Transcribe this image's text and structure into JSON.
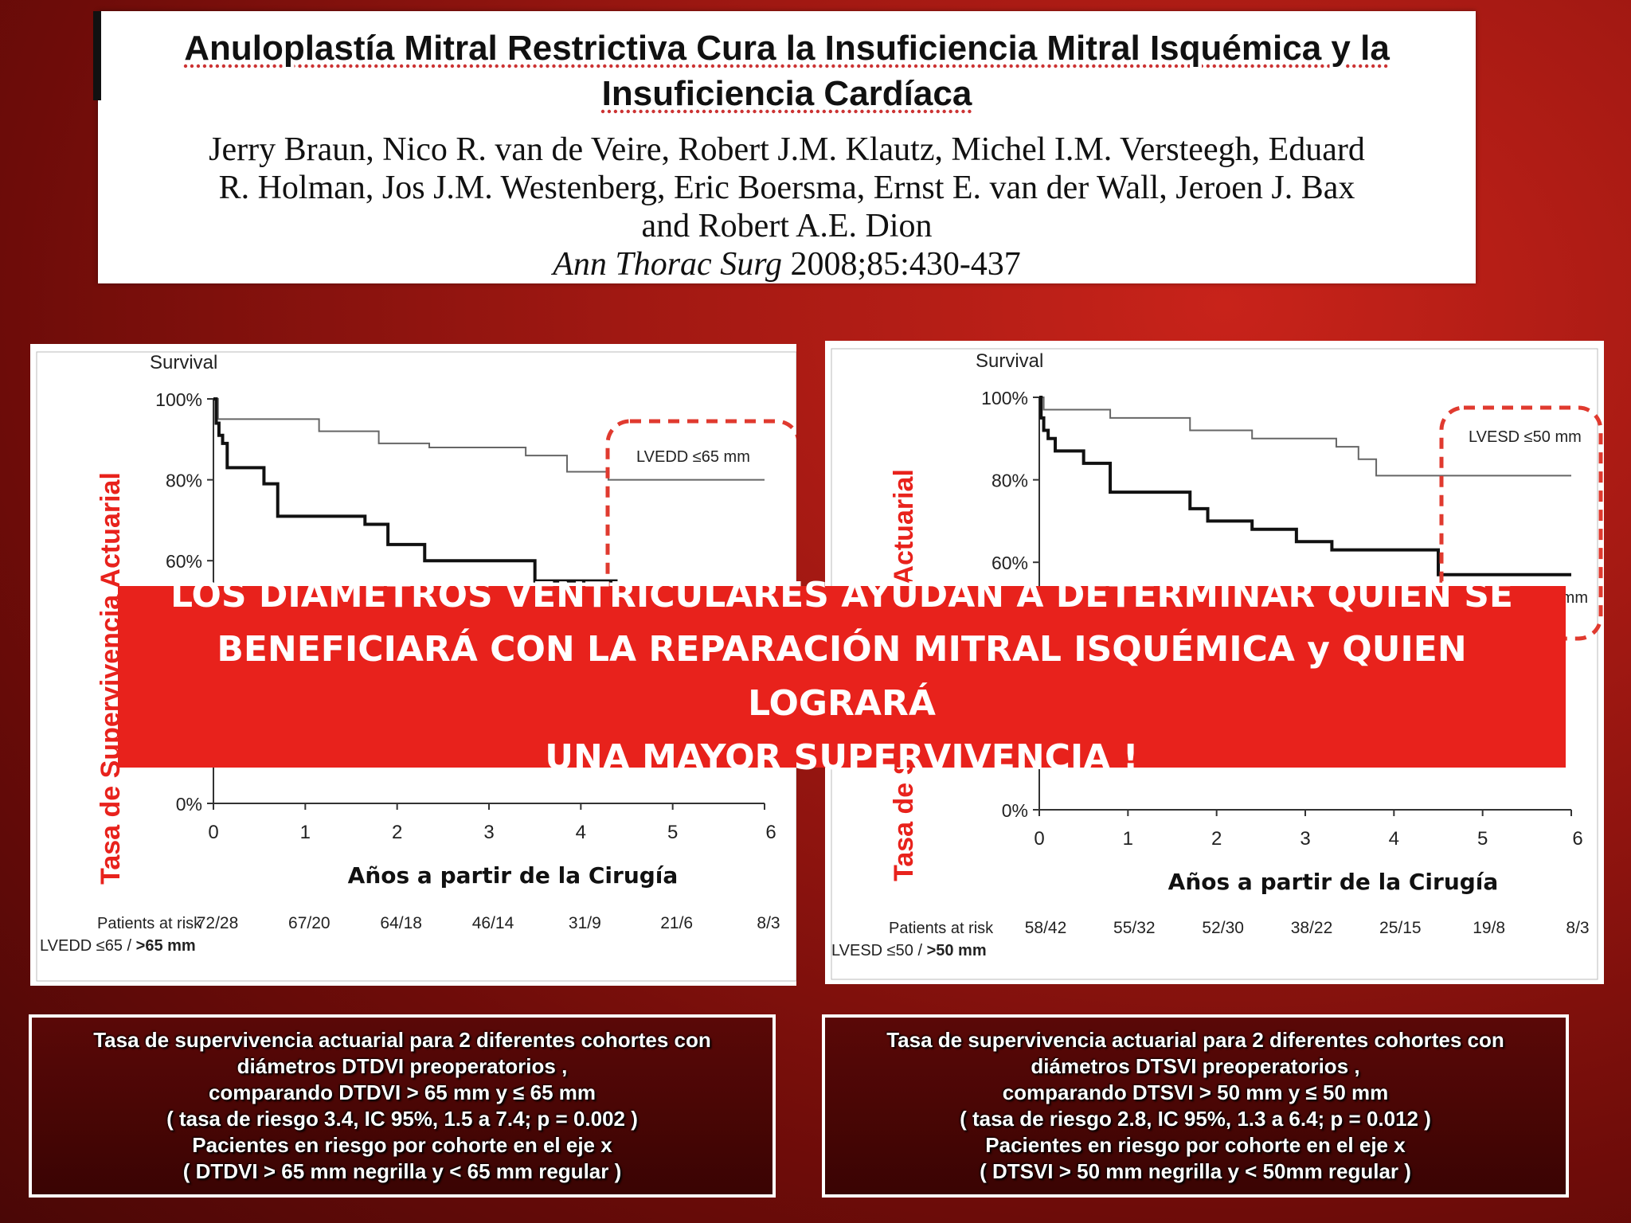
{
  "header": {
    "title_lines": [
      "Anuloplastía Mitral Restrictiva Cura la Insuficiencia Mitral Isquémica y la",
      "Insuficiencia Cardíaca"
    ],
    "author_lines": [
      "Jerry Braun, Nico R. van de Veire, Robert J.M. Klautz, Michel I.M. Versteegh, Eduard",
      "R. Holman, Jos J.M. Westenberg, Eric Boersma, Ernst E. van der Wall, Jeroen J. Bax",
      "and Robert A.E. Dion"
    ],
    "journal": "Ann Thorac Surg",
    "citation": " 2008;85:430-437"
  },
  "banner": {
    "lines": [
      "LOS DIÁMETROS VENTRICULARES AYUDAN A DETERMINAR QUIEN SE",
      "BENEFICIARÁ CON LA REPARACIÓN MITRAL ISQUÉMICA y QUIEN LOGRARÁ",
      "UNA MAYOR SUPERVIVENCIA !"
    ]
  },
  "captions": [
    {
      "lines": [
        "Tasa de supervivencia actuarial para 2 diferentes cohortes con",
        "diámetros DTDVI preoperatorios ,",
        "comparando DTDVI > 65 mm y  ≤ 65 mm",
        "( tasa de riesgo 3.4, IC 95%, 1.5 a 7.4; p = 0.002 )",
        "Pacientes en riesgo por cohorte en el eje x",
        "( DTDVI > 65 mm negrilla  y < 65 mm regular )"
      ]
    },
    {
      "lines": [
        "Tasa de supervivencia actuarial para 2 diferentes cohortes con",
        "diámetros DTSVI preoperatorios ,",
        "comparando DTSVI > 50 mm y  ≤ 50 mm",
        "( tasa de riesgo 2.8, IC 95%, 1.3 a 6.4; p = 0.012 )",
        "Pacientes en riesgo por cohorte en el eje x",
        "( DTSVI >  50 mm negrilla  y <  50mm regular )"
      ]
    }
  ],
  "chart_data": [
    {
      "type": "line",
      "step": true,
      "title": "Survival",
      "ylabel": "Tasa de Supervivencia Actuarial",
      "xlabel": "Años a partir de la Cirugía",
      "xlim": [
        0,
        6
      ],
      "ylim": [
        0,
        100
      ],
      "x_ticks": [
        "0",
        "1",
        "2",
        "3",
        "4",
        "5",
        "6"
      ],
      "y_ticks": [
        "0%",
        "60%",
        "80%",
        "100%"
      ],
      "y_tick_values": [
        0,
        60,
        80,
        100
      ],
      "annotation": "LVEDD ≤65 mm",
      "series": [
        {
          "name": "LVEDD ≤65 mm",
          "weight": "regular",
          "x": [
            0,
            0.05,
            0.7,
            1.15,
            1.8,
            2.35,
            3.4,
            3.85,
            4.3,
            6
          ],
          "y": [
            100,
            95,
            95,
            92,
            89,
            88,
            86,
            82,
            80,
            80
          ]
        },
        {
          "name": ">65 mm",
          "weight": "bold",
          "x": [
            0,
            0.03,
            0.06,
            0.1,
            0.15,
            0.4,
            0.55,
            0.7,
            1.2,
            1.65,
            1.9,
            2.3,
            3.5,
            4.4
          ],
          "y": [
            100,
            94,
            91,
            89,
            83,
            83,
            79,
            71,
            71,
            69,
            64,
            60,
            55,
            55
          ]
        }
      ],
      "risk_table": {
        "label": "Patients at risk",
        "row_label_regular": "LVEDD ≤65 / ",
        "row_label_bold": ">65 mm",
        "values": [
          "72/28",
          "67/20",
          "64/18",
          "46/14",
          "31/9",
          "21/6",
          "8/3"
        ]
      }
    },
    {
      "type": "line",
      "step": true,
      "title": "Survival",
      "ylabel": "Tasa de Supervivencia Actuarial",
      "xlabel": "Años a partir de la Cirugía",
      "xlim": [
        0,
        6
      ],
      "ylim": [
        0,
        100
      ],
      "x_ticks": [
        "0",
        "1",
        "2",
        "3",
        "4",
        "5",
        "6"
      ],
      "y_ticks": [
        "0%",
        "60%",
        "80%",
        "100%"
      ],
      "y_tick_values": [
        0,
        60,
        80,
        100
      ],
      "annotation": "LVESD ≤50 mm",
      "annotation_fragment": "mm",
      "series": [
        {
          "name": "LVESD ≤50 mm",
          "weight": "regular",
          "x": [
            0,
            0.05,
            0.8,
            1.7,
            2.4,
            3.35,
            3.6,
            3.8,
            6
          ],
          "y": [
            100,
            97,
            95,
            92,
            90,
            88,
            85,
            81,
            81
          ]
        },
        {
          "name": ">50 mm",
          "weight": "bold",
          "x": [
            0,
            0.02,
            0.05,
            0.1,
            0.18,
            0.5,
            0.8,
            1.7,
            1.9,
            2.4,
            2.9,
            3.3,
            4.5,
            6
          ],
          "y": [
            100,
            95,
            92,
            90,
            87,
            84,
            77,
            73,
            70,
            68,
            65,
            63,
            57,
            57
          ]
        }
      ],
      "risk_table": {
        "label": "Patients at risk",
        "row_label_regular": "LVESD ≤50 / ",
        "row_label_bold": ">50 mm",
        "values": [
          "58/42",
          "55/32",
          "52/30",
          "38/22",
          "25/15",
          "19/8",
          "8/3"
        ]
      }
    }
  ]
}
